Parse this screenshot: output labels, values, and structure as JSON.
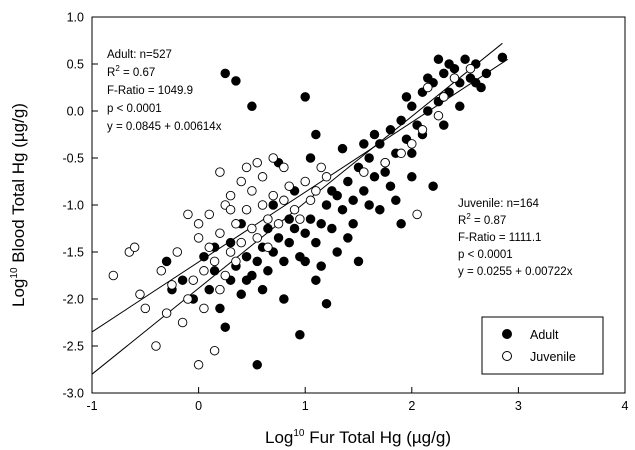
{
  "chart_data": {
    "type": "scatter",
    "title": "",
    "xlabel": {
      "prefix": "Log",
      "sup": "10",
      "text": " Fur Total Hg (µg/g)"
    },
    "ylabel": {
      "prefix": "Log",
      "sup": "10",
      "text": " Blood Total Hg (µg/g)"
    },
    "xlim": [
      -1,
      4
    ],
    "ylim": [
      -3.0,
      1.0
    ],
    "x_ticks": [
      "-1",
      "0",
      "1",
      "2",
      "3",
      "4"
    ],
    "y_ticks": [
      "1.0",
      "0.5",
      "0.0",
      "-0.5",
      "-1.0",
      "-1.5",
      "-2.0",
      "-2.5",
      "-3.0"
    ],
    "grid": false,
    "legend_position": "bottom-right",
    "series": [
      {
        "name": "Adult",
        "marker": "filled-circle",
        "color": "#000000",
        "fit_line": {
          "x": [
            -1,
            2.9
          ],
          "y": [
            -2.35,
            0.55
          ]
        },
        "points": [
          [
            -0.25,
            -1.9
          ],
          [
            -0.05,
            -2.0
          ],
          [
            0.1,
            -1.9
          ],
          [
            0.15,
            -1.7
          ],
          [
            0.2,
            -2.1
          ],
          [
            0.3,
            -1.8
          ],
          [
            0.35,
            -1.65
          ],
          [
            0.4,
            -1.95
          ],
          [
            0.45,
            -1.55
          ],
          [
            0.5,
            -1.75
          ],
          [
            0.55,
            -1.6
          ],
          [
            0.6,
            -1.45
          ],
          [
            0.65,
            -1.7
          ],
          [
            0.7,
            -1.5
          ],
          [
            0.75,
            -1.35
          ],
          [
            0.8,
            -1.6
          ],
          [
            0.85,
            -1.4
          ],
          [
            0.9,
            -1.25
          ],
          [
            0.95,
            -1.55
          ],
          [
            1.0,
            -1.3
          ],
          [
            1.05,
            -1.15
          ],
          [
            1.1,
            -1.4
          ],
          [
            1.15,
            -1.2
          ],
          [
            1.2,
            -1.0
          ],
          [
            1.25,
            -1.25
          ],
          [
            1.3,
            -0.9
          ],
          [
            1.35,
            -1.05
          ],
          [
            1.4,
            -0.75
          ],
          [
            1.45,
            -0.95
          ],
          [
            1.5,
            -0.6
          ],
          [
            1.55,
            -0.85
          ],
          [
            1.6,
            -0.5
          ],
          [
            1.65,
            -0.7
          ],
          [
            1.7,
            -0.35
          ],
          [
            1.75,
            -0.55
          ],
          [
            1.8,
            -0.2
          ],
          [
            1.85,
            -0.45
          ],
          [
            1.9,
            -0.1
          ],
          [
            1.95,
            -0.3
          ],
          [
            2.0,
            0.05
          ],
          [
            2.05,
            -0.15
          ],
          [
            2.1,
            0.2
          ],
          [
            2.15,
            0.0
          ],
          [
            2.2,
            0.3
          ],
          [
            2.25,
            0.1
          ],
          [
            2.3,
            0.4
          ],
          [
            2.35,
            0.2
          ],
          [
            2.4,
            0.45
          ],
          [
            2.45,
            0.3
          ],
          [
            2.5,
            0.55
          ],
          [
            2.55,
            0.35
          ],
          [
            2.6,
            0.5
          ],
          [
            2.65,
            0.25
          ],
          [
            2.7,
            0.4
          ],
          [
            2.85,
            0.57
          ],
          [
            2.25,
            0.55
          ],
          [
            0.25,
            0.4
          ],
          [
            0.35,
            0.32
          ],
          [
            0.5,
            0.05
          ],
          [
            1.0,
            0.15
          ],
          [
            1.1,
            -0.25
          ],
          [
            0.75,
            -0.55
          ],
          [
            2.2,
            -0.8
          ],
          [
            1.9,
            -1.2
          ],
          [
            1.2,
            -2.05
          ],
          [
            0.95,
            -2.38
          ],
          [
            0.55,
            -2.7
          ],
          [
            0.25,
            -2.3
          ],
          [
            1.5,
            -1.6
          ],
          [
            1.25,
            -0.85
          ],
          [
            1.05,
            -0.5
          ],
          [
            0.9,
            -0.85
          ],
          [
            0.7,
            -1.0
          ],
          [
            1.6,
            -1.0
          ],
          [
            1.8,
            -0.8
          ],
          [
            2.0,
            -0.45
          ],
          [
            2.3,
            -0.15
          ],
          [
            1.4,
            -1.35
          ],
          [
            0.6,
            -1.9
          ],
          [
            0.8,
            -2.0
          ],
          [
            0.3,
            -1.4
          ],
          [
            0.4,
            -1.2
          ],
          [
            1.35,
            -0.4
          ],
          [
            1.15,
            -1.65
          ],
          [
            1.95,
            0.15
          ],
          [
            2.45,
            0.05
          ],
          [
            2.0,
            -0.7
          ],
          [
            1.65,
            -0.25
          ],
          [
            0.15,
            -1.45
          ],
          [
            0.05,
            -1.55
          ],
          [
            -0.15,
            -1.8
          ],
          [
            -0.3,
            -1.6
          ],
          [
            1.3,
            -1.5
          ],
          [
            1.45,
            -1.2
          ],
          [
            1.55,
            -0.35
          ],
          [
            1.75,
            -0.65
          ],
          [
            2.15,
            0.35
          ],
          [
            2.35,
            0.5
          ],
          [
            2.6,
            0.3
          ],
          [
            0.65,
            -1.25
          ],
          [
            0.85,
            -1.15
          ],
          [
            1.0,
            -1.6
          ],
          [
            1.1,
            -1.8
          ],
          [
            0.45,
            -1.8
          ],
          [
            1.7,
            -1.05
          ],
          [
            1.85,
            -0.95
          ],
          [
            2.1,
            -0.25
          ]
        ]
      },
      {
        "name": "Juvenile",
        "marker": "open-circle",
        "color": "#000000",
        "fit_line": {
          "x": [
            -1,
            2.85
          ],
          "y": [
            -2.8,
            0.72
          ]
        },
        "points": [
          [
            -0.8,
            -1.75
          ],
          [
            -0.65,
            -1.5
          ],
          [
            -0.6,
            -1.45
          ],
          [
            -0.55,
            -1.95
          ],
          [
            -0.5,
            -2.1
          ],
          [
            -0.4,
            -2.5
          ],
          [
            -0.35,
            -1.7
          ],
          [
            -0.3,
            -2.15
          ],
          [
            -0.25,
            -1.85
          ],
          [
            -0.2,
            -1.5
          ],
          [
            -0.15,
            -2.25
          ],
          [
            -0.1,
            -2.0
          ],
          [
            -0.05,
            -1.8
          ],
          [
            0.0,
            -1.35
          ],
          [
            0.0,
            -2.7
          ],
          [
            0.05,
            -1.7
          ],
          [
            0.1,
            -1.45
          ],
          [
            0.1,
            -1.1
          ],
          [
            0.15,
            -1.6
          ],
          [
            0.2,
            -1.3
          ],
          [
            0.2,
            -1.9
          ],
          [
            0.25,
            -1.0
          ],
          [
            0.3,
            -1.5
          ],
          [
            0.3,
            -0.9
          ],
          [
            0.35,
            -1.2
          ],
          [
            0.4,
            -0.75
          ],
          [
            0.4,
            -1.4
          ],
          [
            0.45,
            -1.05
          ],
          [
            0.5,
            -0.85
          ],
          [
            0.5,
            -1.25
          ],
          [
            0.55,
            -1.35
          ],
          [
            0.6,
            -1.0
          ],
          [
            0.6,
            -0.7
          ],
          [
            0.65,
            -1.15
          ],
          [
            0.7,
            -0.9
          ],
          [
            0.75,
            -1.2
          ],
          [
            0.8,
            -0.95
          ],
          [
            0.85,
            -0.8
          ],
          [
            0.9,
            -1.05
          ],
          [
            1.0,
            -0.75
          ],
          [
            1.05,
            -0.95
          ],
          [
            1.1,
            -0.85
          ],
          [
            1.15,
            -0.6
          ],
          [
            0.95,
            -1.15
          ],
          [
            0.15,
            -2.55
          ],
          [
            0.05,
            -2.1
          ],
          [
            0.35,
            -1.6
          ],
          [
            0.25,
            -1.75
          ],
          [
            1.75,
            -0.55
          ],
          [
            1.9,
            -0.45
          ],
          [
            2.0,
            -0.35
          ],
          [
            2.25,
            -0.05
          ],
          [
            2.3,
            0.15
          ],
          [
            2.4,
            0.35
          ],
          [
            2.55,
            0.45
          ],
          [
            2.15,
            0.25
          ],
          [
            2.1,
            -0.2
          ],
          [
            2.05,
            -1.1
          ],
          [
            1.55,
            -0.65
          ],
          [
            1.2,
            -0.7
          ],
          [
            0.55,
            -0.55
          ],
          [
            0.45,
            -0.6
          ],
          [
            0.7,
            -0.5
          ],
          [
            -0.1,
            -1.1
          ],
          [
            0.0,
            -1.2
          ],
          [
            0.8,
            -0.6
          ],
          [
            0.3,
            -1.05
          ],
          [
            0.2,
            -0.65
          ],
          [
            0.65,
            -1.45
          ]
        ]
      }
    ],
    "annotations": {
      "adult": {
        "line1": "Adult: n=527",
        "line2_prefix": "R",
        "line2_sup": "2",
        "line2_suffix": " = 0.67",
        "line3": "F-Ratio = 1049.9",
        "line4": "p < 0.0001",
        "line5": "y = 0.0845 + 0.00614x"
      },
      "juvenile": {
        "line1": "Juvenile: n=164",
        "line2_prefix": "R",
        "line2_sup": "2",
        "line2_suffix": " = 0.87",
        "line3": "F-Ratio = 1111.1",
        "line4": "p < 0.0001",
        "line5": "y = 0.0255 + 0.00722x"
      }
    },
    "legend": [
      {
        "label": "Adult",
        "marker": "filled-circle"
      },
      {
        "label": "Juvenile",
        "marker": "open-circle"
      }
    ]
  }
}
